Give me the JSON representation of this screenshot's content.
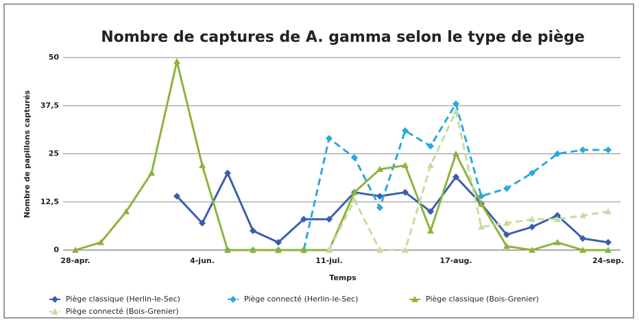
{
  "chart_data": {
    "type": "line",
    "title": "Nombre de captures de A. gamma selon le type de piège",
    "x_label": "Temps",
    "y_label": "Nombre de papillons capturés",
    "categories": [
      "28-apr.",
      null,
      null,
      null,
      null,
      "4-jun.",
      null,
      null,
      null,
      null,
      "11-jul.",
      null,
      null,
      null,
      null,
      "17-aug.",
      null,
      null,
      null,
      null,
      null,
      "24-sep."
    ],
    "ylim": [
      0,
      50
    ],
    "yticks": [
      0,
      {
        "value": 12.5,
        "label": "12,5"
      },
      25,
      {
        "value": 37.5,
        "label": "37,5"
      },
      50
    ],
    "grid": true,
    "legend": "bottom",
    "series": [
      {
        "name": "Piège classique (Herlin-le-Sec)",
        "color": "#3a5eab",
        "dashed": false,
        "marker": "diamond",
        "values": [
          null,
          null,
          null,
          null,
          14,
          7,
          20,
          5,
          2,
          8,
          8,
          15,
          14,
          15,
          10,
          19,
          12,
          4,
          6,
          9,
          3,
          2
        ]
      },
      {
        "name": "Piège connecté (Herlin-le-Sec)",
        "color": "#29a8e0",
        "dashed": true,
        "marker": "diamond",
        "values": [
          null,
          null,
          null,
          null,
          null,
          null,
          0,
          0,
          0,
          0,
          29,
          24,
          11,
          31,
          27,
          38,
          14,
          16,
          20,
          25,
          26,
          26
        ]
      },
      {
        "name": "Piège classique (Bois-Grenier)",
        "color": "#8db33a",
        "dashed": false,
        "marker": "triangle",
        "values": [
          0,
          2,
          10,
          20,
          49,
          22,
          0,
          0,
          0,
          0,
          0,
          15,
          21,
          22,
          5,
          25,
          12,
          1,
          0,
          2,
          0,
          0
        ]
      },
      {
        "name": "Piège connecté (Bois-Grenier)",
        "color": "#c5dca0",
        "dashed": true,
        "marker": "triangle",
        "values": [
          null,
          null,
          null,
          null,
          null,
          null,
          null,
          null,
          null,
          null,
          0,
          13,
          0,
          0,
          22,
          36,
          6,
          7,
          8,
          8,
          9,
          10
        ]
      }
    ]
  }
}
